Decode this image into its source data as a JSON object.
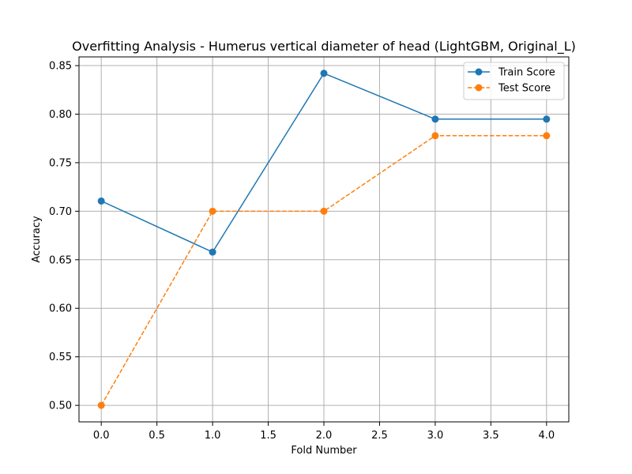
{
  "chart_data": {
    "type": "line",
    "title": "Overfitting Analysis - Humerus vertical diameter of head (LightGBM, Original_L)",
    "xlabel": "Fold Number",
    "ylabel": "Accuracy",
    "x": [
      0,
      1,
      2,
      3,
      4
    ],
    "xlim": [
      -0.2,
      4.2
    ],
    "ylim": [
      0.483,
      0.859
    ],
    "xticks": [
      0.0,
      0.5,
      1.0,
      1.5,
      2.0,
      2.5,
      3.0,
      3.5,
      4.0
    ],
    "xtick_labels": [
      "0.0",
      "0.5",
      "1.0",
      "1.5",
      "2.0",
      "2.5",
      "3.0",
      "3.5",
      "4.0"
    ],
    "yticks": [
      0.5,
      0.55,
      0.6,
      0.65,
      0.7,
      0.75,
      0.8,
      0.85
    ],
    "ytick_labels": [
      "0.50",
      "0.55",
      "0.60",
      "0.65",
      "0.70",
      "0.75",
      "0.80",
      "0.85"
    ],
    "grid": true,
    "legend_position": "top-right",
    "series": [
      {
        "name": "Train Score",
        "values": [
          0.7105,
          0.6579,
          0.8421,
          0.7949,
          0.7949
        ],
        "color": "#1f77b4",
        "line_style": "solid",
        "marker": "circle"
      },
      {
        "name": "Test Score",
        "values": [
          0.5,
          0.7,
          0.7,
          0.7778,
          0.7778
        ],
        "color": "#ff7f0e",
        "line_style": "dashed",
        "marker": "circle"
      }
    ]
  }
}
